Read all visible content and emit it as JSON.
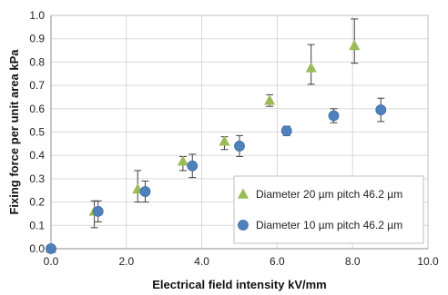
{
  "chart_data": {
    "type": "scatter",
    "xlabel": "Electrical field intensity kV/mm",
    "ylabel": "Fixing force per unit area kPa",
    "xlim": [
      0,
      10
    ],
    "ylim": [
      0,
      1
    ],
    "xticks": [
      "0.0",
      "2.0",
      "4.0",
      "6.0",
      "8.0",
      "10.0"
    ],
    "yticks": [
      "0.0",
      "0.1",
      "0.2",
      "0.3",
      "0.4",
      "0.5",
      "0.6",
      "0.7",
      "0.8",
      "0.9",
      "1.0"
    ],
    "grid": true,
    "legend_position": "bottom-right",
    "series": [
      {
        "name": "Diameter 20 µm pitch 46.2 µm",
        "marker": "triangle",
        "color": "#9BBB59",
        "points": [
          {
            "x": 0.0,
            "y": 0.0,
            "err": 0
          },
          {
            "x": 1.15,
            "y": 0.16,
            "err": 0
          },
          {
            "x": 2.3,
            "y": 0.255,
            "err": 0
          },
          {
            "x": 3.5,
            "y": 0.375,
            "err": 0
          },
          {
            "x": 4.6,
            "y": 0.46,
            "err": 0
          },
          {
            "x": 5.8,
            "y": 0.635,
            "err": 0.025
          },
          {
            "x": 6.9,
            "y": 0.775,
            "err": 0
          },
          {
            "x": 8.05,
            "y": 0.87,
            "err": 0
          }
        ]
      },
      {
        "name": "Diameter 10 µm pitch 46.2 µm",
        "marker": "circle",
        "color": "#4F81BD",
        "points": [
          {
            "x": 0.0,
            "y": 0.0,
            "err": 0
          },
          {
            "x": 1.25,
            "y": 0.16,
            "err": 0.045
          },
          {
            "x": 2.5,
            "y": 0.245,
            "err": 0.045
          },
          {
            "x": 3.75,
            "y": 0.355,
            "err": 0.05
          },
          {
            "x": 5.0,
            "y": 0.44,
            "err": 0.045
          },
          {
            "x": 6.25,
            "y": 0.505,
            "err": 0.02
          },
          {
            "x": 7.5,
            "y": 0.57,
            "err": 0.03
          },
          {
            "x": 8.75,
            "y": 0.595,
            "err": 0.05
          }
        ]
      }
    ],
    "error_bars_overlay": [
      {
        "x": 1.15,
        "low": 0.09,
        "high": 0.205
      },
      {
        "x": 2.3,
        "low": 0.2,
        "high": 0.335
      },
      {
        "x": 3.5,
        "low": 0.335,
        "high": 0.395
      },
      {
        "x": 4.6,
        "low": 0.425,
        "high": 0.48
      },
      {
        "x": 6.9,
        "low": 0.705,
        "high": 0.875
      },
      {
        "x": 8.05,
        "low": 0.795,
        "high": 0.985
      }
    ]
  }
}
